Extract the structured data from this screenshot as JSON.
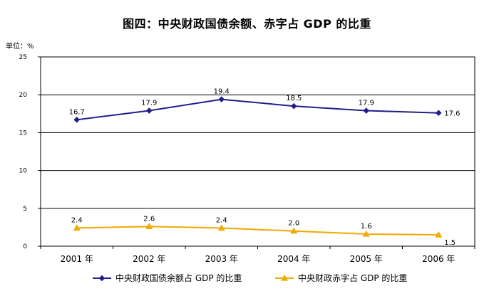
{
  "chart_data": {
    "type": "line",
    "title": "图四：中央财政国债余额、赤字占 GDP 的比重",
    "unit_label": "单位：%",
    "categories": [
      "2001 年",
      "2002 年",
      "2003 年",
      "2004 年",
      "2005 年",
      "2006 年"
    ],
    "ylim": [
      0,
      25
    ],
    "yticks": [
      0,
      5,
      10,
      15,
      20,
      25
    ],
    "grid": true,
    "legend_position": "bottom",
    "series": [
      {
        "name": "中央财政国债余额占 GDP 的比重",
        "values": [
          16.7,
          17.9,
          19.4,
          18.5,
          17.9,
          17.6
        ],
        "labels": [
          "16.7",
          "17.9",
          "19.4",
          "18.5",
          "17.9",
          "17.6"
        ],
        "color": "#1f1f8c",
        "marker": "diamond"
      },
      {
        "name": "中央财政赤字占 GDP 的比重",
        "values": [
          2.4,
          2.6,
          2.4,
          2.0,
          1.6,
          1.5
        ],
        "labels": [
          "2.4",
          "2.6",
          "2.4",
          "2.0",
          "1.6",
          "1.5"
        ],
        "color": "#f2a900",
        "marker": "triangle"
      }
    ]
  }
}
